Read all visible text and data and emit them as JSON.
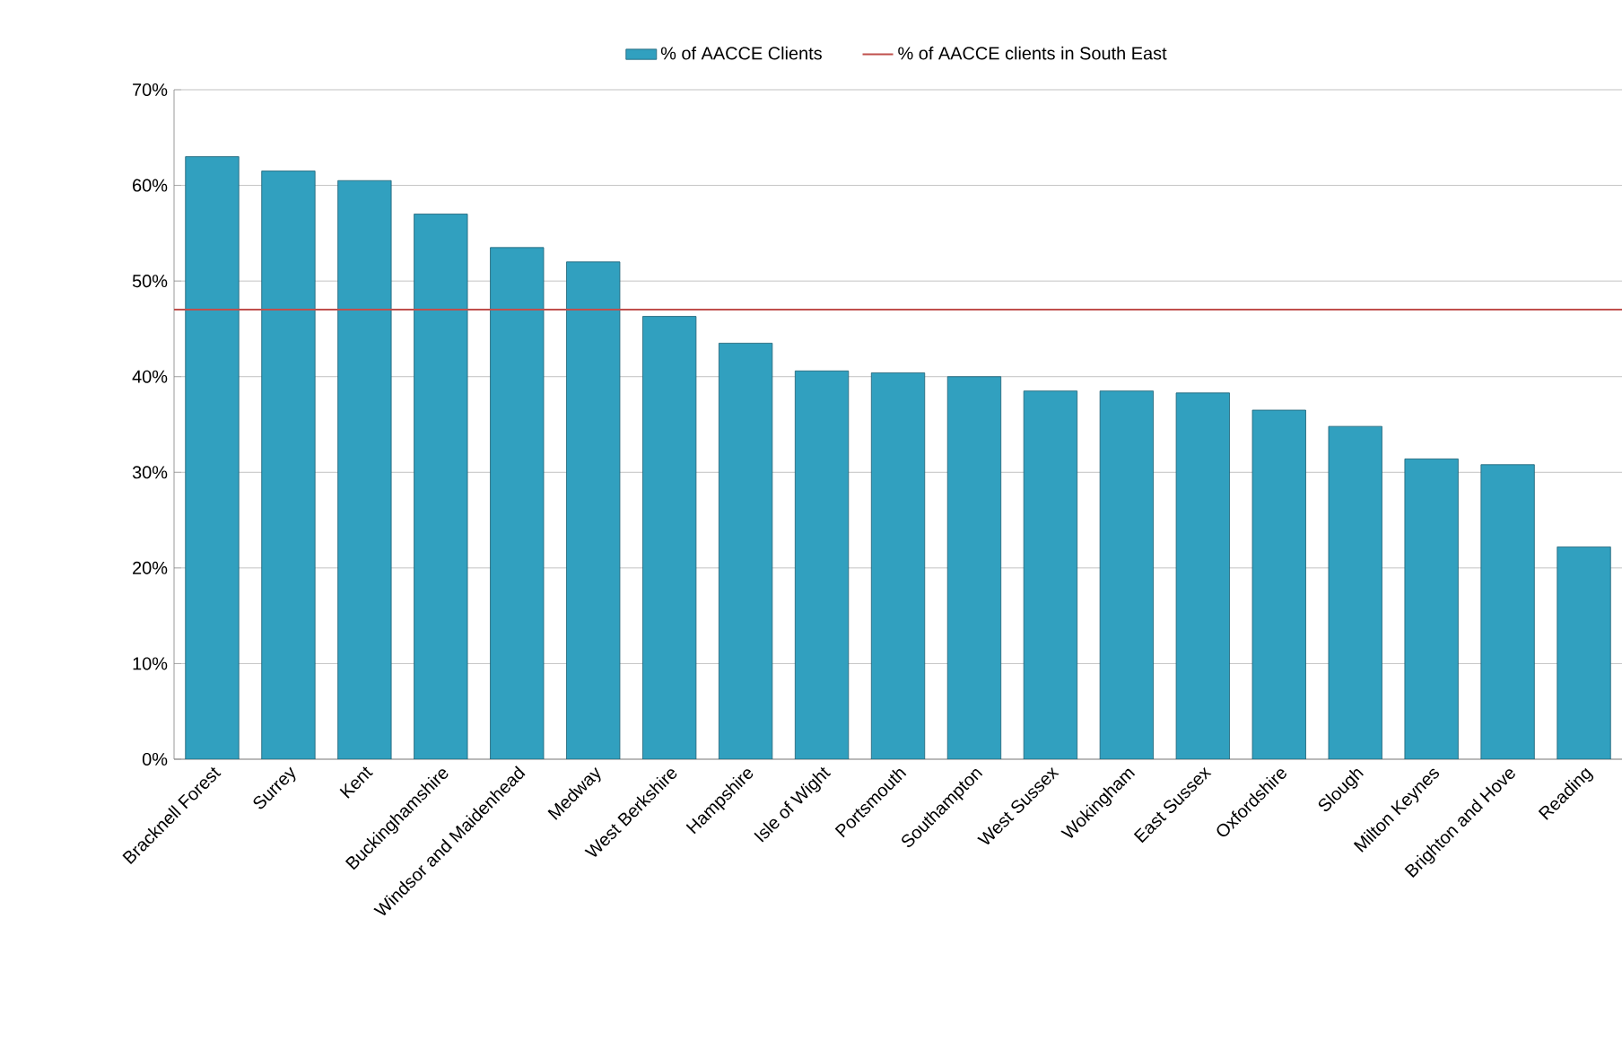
{
  "chart_data": {
    "type": "bar",
    "categories": [
      "Bracknell Forest",
      "Surrey",
      "Kent",
      "Buckinghamshire",
      "Windsor and Maidenhead",
      "Medway",
      "West Berkshire",
      "Hampshire",
      "Isle of Wight",
      "Portsmouth",
      "Southampton",
      "West Sussex",
      "Wokingham",
      "East Sussex",
      "Oxfordshire",
      "Slough",
      "Milton Keynes",
      "Brighton and Hove",
      "Reading"
    ],
    "series": [
      {
        "name": "% of AACCE Clients",
        "color": "#31a0bf",
        "values": [
          63,
          61.5,
          60.5,
          57,
          53.5,
          52,
          46.3,
          43.5,
          40.6,
          40.4,
          40,
          38.5,
          38.5,
          38.3,
          36.5,
          34.8,
          31.4,
          30.8,
          22.2
        ]
      }
    ],
    "ref_lines": [
      {
        "axis": "y",
        "value": 47,
        "label": "% of AACCE clients in South East",
        "color": "#c0504d"
      }
    ],
    "ylim": [
      0,
      70
    ],
    "yticks": [
      {
        "value": 0,
        "label": "0%"
      },
      {
        "value": 10,
        "label": "10%"
      },
      {
        "value": 20,
        "label": "20%"
      },
      {
        "value": 30,
        "label": "30%"
      },
      {
        "value": 40,
        "label": "40%"
      },
      {
        "value": 50,
        "label": "50%"
      },
      {
        "value": 60,
        "label": "60%"
      },
      {
        "value": 70,
        "label": "70%"
      }
    ],
    "grid": "y",
    "legend": "top"
  }
}
